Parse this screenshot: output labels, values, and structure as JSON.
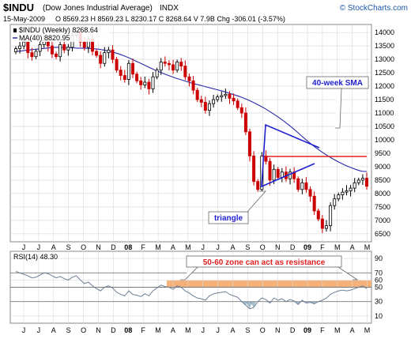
{
  "header": {
    "symbol": "$INDU",
    "name": "(Dow Jones Industrial Average)",
    "exchange": "INDX",
    "date": "15-May-2009",
    "ohlc": "O 8569.23  H 8569.23  L 8230.17  C 8268.64  V 7.9B  Chg -306.01 (-3.57%)",
    "brand": "© StockCharts.com"
  },
  "colors": {
    "up": "#000000",
    "down": "#cc0000",
    "ma": "#2a2aa8",
    "resistance": "#e02020",
    "triangle": "#1f1fd0",
    "zone": "#f4b27a",
    "rsi": "#6d7f95",
    "grid": "#d8d8d8"
  },
  "chart_data": [
    {
      "type": "candlestick",
      "legend": [
        "$INDU (Weekly) 8268.64",
        "MA(40) 8820.95"
      ],
      "y_ticks": [
        6500,
        7000,
        7500,
        8000,
        8500,
        9000,
        9500,
        10000,
        10500,
        11000,
        11500,
        12000,
        12500,
        13000,
        13500,
        14000
      ],
      "ylim": [
        6200,
        14300
      ],
      "x_month_labels": [
        "J",
        "J",
        "A",
        "S",
        "O",
        "N",
        "D",
        "08",
        "F",
        "M",
        "A",
        "M",
        "J",
        "J",
        "A",
        "S",
        "O",
        "N",
        "D",
        "09",
        "F",
        "M",
        "A",
        "M"
      ],
      "x_bold_labels": [
        "08",
        "09"
      ],
      "close_series": [
        13400,
        13500,
        13650,
        13250,
        13100,
        13300,
        13550,
        13700,
        13500,
        13200,
        13100,
        13550,
        13350,
        13450,
        13900,
        14000,
        13650,
        13450,
        13750,
        13300,
        13150,
        12850,
        13250,
        13350,
        13000,
        12600,
        12400,
        12250,
        12850,
        12450,
        12200,
        12050,
        12150,
        11900,
        12350,
        12600,
        12900,
        12850,
        12800,
        12600,
        12900,
        12750,
        12350,
        12200,
        11850,
        11500,
        11400,
        11100,
        11350,
        11500,
        11600,
        11650,
        11700,
        11550,
        11450,
        11200,
        11000,
        10300,
        9400,
        8450,
        8150,
        9400,
        9200,
        8500,
        8900,
        8600,
        8800,
        8550,
        8800,
        8550,
        8150,
        8400,
        8150,
        7900,
        7350,
        7050,
        6700,
        6800,
        7550,
        7800,
        7950,
        8050,
        8100,
        8200,
        8400,
        8500,
        8570,
        8269
      ],
      "ma40_series": [
        13300,
        13310,
        13340,
        13360,
        13380,
        13400,
        13420,
        13440,
        13450,
        13450,
        13440,
        13430,
        13420,
        13420,
        13410,
        13400,
        13380,
        13350,
        13310,
        13260,
        13200,
        13130,
        13050,
        12960,
        12870,
        12780,
        12690,
        12600,
        12520,
        12440,
        12370,
        12300,
        12240,
        12180,
        12120,
        12070,
        12020,
        11970,
        11920,
        11870,
        11820,
        11760,
        11700,
        11640,
        11570,
        11490,
        11400,
        11300,
        11200,
        11080,
        10960,
        10830,
        10690,
        10540,
        10380,
        10210,
        10040,
        9880,
        9730,
        9590,
        9460,
        9340,
        9230,
        9130,
        9040,
        8960,
        8890,
        8830,
        8820
      ]
    },
    {
      "type": "line",
      "legend": "RSI(14) 48.30",
      "y_ticks": [
        10,
        30,
        50,
        60,
        70,
        90
      ],
      "ylim": [
        0,
        100
      ],
      "values": [
        72,
        70,
        68,
        66,
        63,
        64,
        67,
        70,
        69,
        66,
        63,
        65,
        62,
        60,
        64,
        66,
        60,
        55,
        57,
        52,
        48,
        45,
        50,
        52,
        49,
        43,
        40,
        38,
        45,
        40,
        39,
        37,
        41,
        38,
        45,
        49,
        53,
        51,
        50,
        47,
        52,
        50,
        45,
        42,
        38,
        35,
        34,
        32,
        38,
        41,
        42,
        43,
        44,
        40,
        38,
        36,
        30,
        25,
        20,
        22,
        30,
        35,
        33,
        28,
        35,
        32,
        34,
        30,
        33,
        31,
        26,
        32,
        28,
        29,
        27,
        30,
        32,
        35,
        40,
        43,
        45,
        46,
        45,
        46,
        48,
        50,
        52,
        48
      ]
    }
  ],
  "annotations": {
    "sma_label": "40-week SMA",
    "triangle_label": "triangle",
    "zone_label": "50-60 zone can act as resistance"
  }
}
